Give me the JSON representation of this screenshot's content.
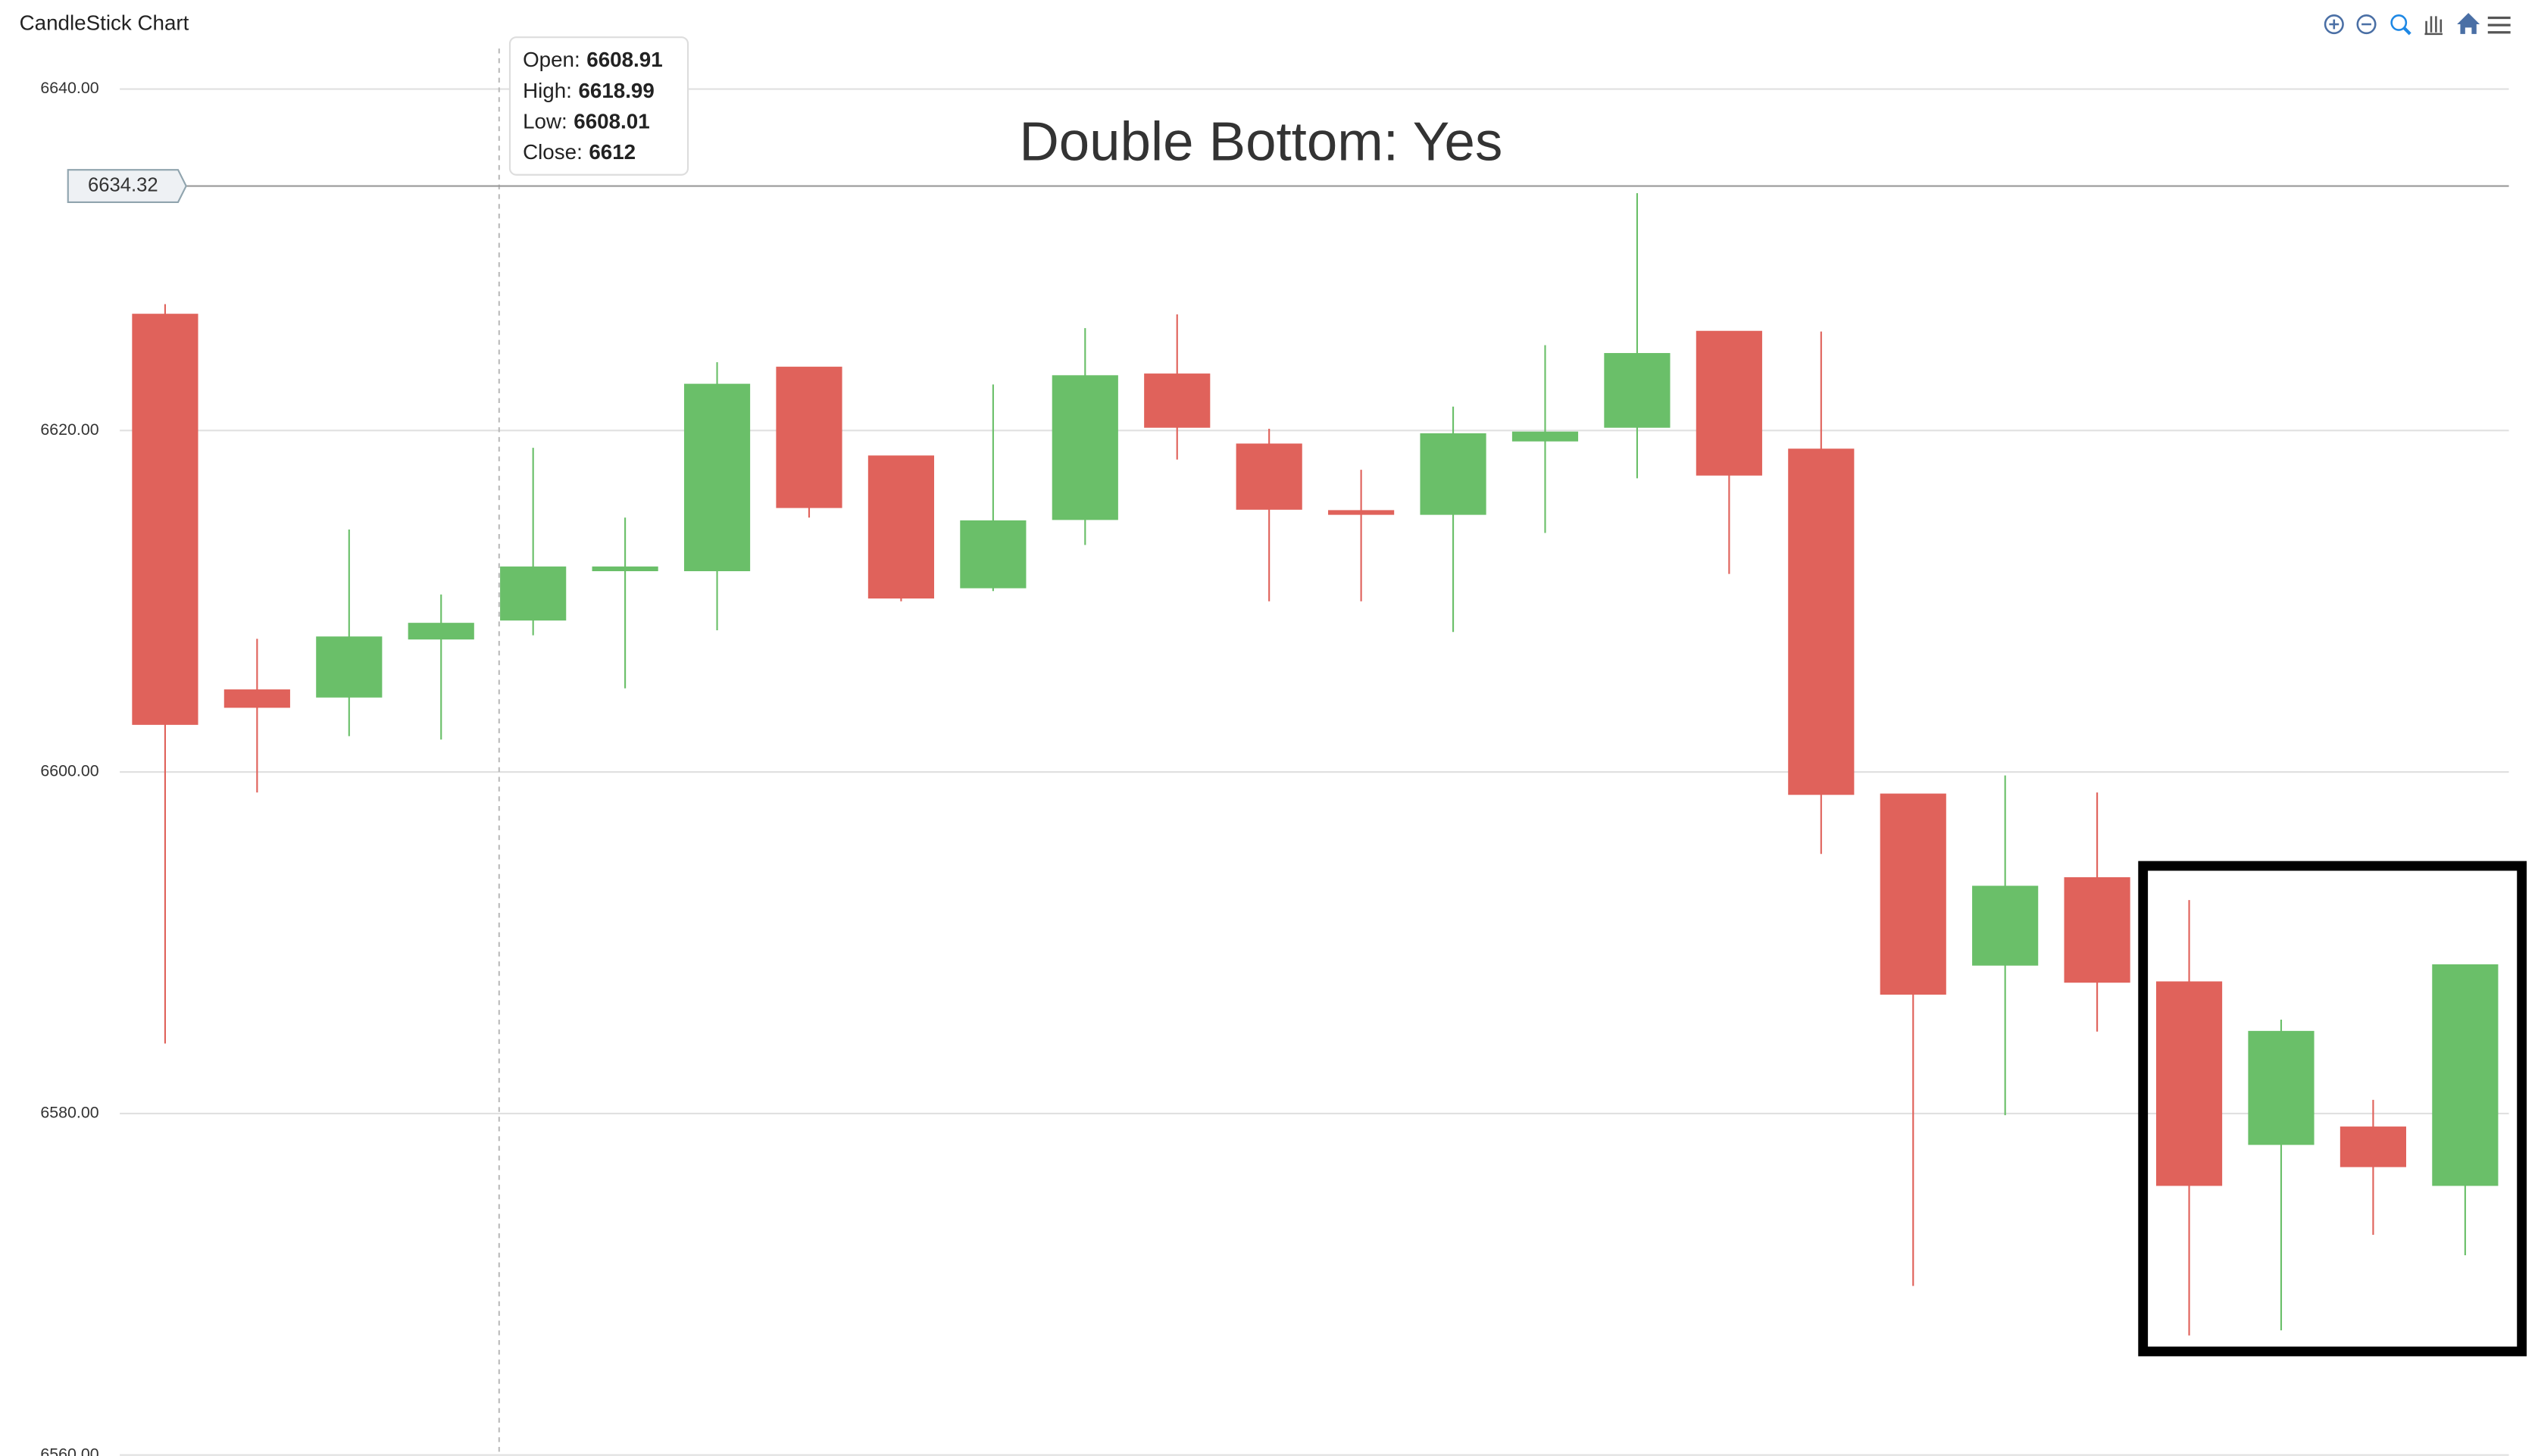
{
  "chart_data": {
    "type": "candlestick",
    "header": "CandleStick Chart",
    "title": "Double Bottom: Yes",
    "up_color": "#6abf69",
    "down_color": "#e0625b",
    "open": [
      6626.8,
      6604.8,
      6604.4,
      6607.8,
      6608.91,
      6611.8,
      6611.8,
      6623.7,
      6618.5,
      6610.8,
      6614.8,
      6623.3,
      6619.2,
      6615.3,
      6615.1,
      6619.4,
      6620.2,
      6625.8,
      6618.9,
      6598.7,
      6588.7,
      6593.8,
      6587.7,
      6578.2,
      6579.2,
      6575.8
    ],
    "high": [
      6627.4,
      6607.8,
      6614.2,
      6610.4,
      6618.99,
      6614.9,
      6624.0,
      6623.7,
      6618.5,
      6622.7,
      6626.0,
      6626.8,
      6620.1,
      6617.7,
      6621.4,
      6625.0,
      6633.9,
      6625.8,
      6625.8,
      6598.7,
      6599.8,
      6598.8,
      6592.5,
      6585.5,
      6580.8,
      6588.7
    ],
    "low": [
      6584.1,
      6598.8,
      6602.1,
      6601.9,
      6608.01,
      6604.9,
      6608.3,
      6614.9,
      6610.0,
      6610.6,
      6613.3,
      6618.3,
      6610.0,
      6610.0,
      6608.2,
      6614.0,
      6617.2,
      6611.6,
      6595.2,
      6569.9,
      6579.9,
      6584.8,
      6567.0,
      6567.3,
      6572.9,
      6571.7
    ],
    "close": [
      6602.8,
      6603.8,
      6607.9,
      6608.7,
      6612,
      6612.0,
      6622.7,
      6615.5,
      6610.2,
      6614.7,
      6623.2,
      6620.2,
      6615.4,
      6615.1,
      6619.8,
      6619.9,
      6624.5,
      6617.4,
      6598.7,
      6587.0,
      6593.3,
      6587.7,
      6575.8,
      6584.8,
      6576.9,
      6588.7
    ],
    "ylim": [
      6560,
      6640
    ],
    "yticks": [
      {
        "value": 6560,
        "label": "6560.00"
      },
      {
        "value": 6580,
        "label": "6580.00"
      },
      {
        "value": 6600,
        "label": "6600.00"
      },
      {
        "value": 6620,
        "label": "6620.00"
      },
      {
        "value": 6640,
        "label": "6640.00"
      }
    ],
    "grid": true,
    "tooltip": {
      "index": 4,
      "labels": [
        "Open:",
        "High:",
        "Low:",
        "Close:"
      ]
    },
    "crosshair_value": 6634.32
  }
}
